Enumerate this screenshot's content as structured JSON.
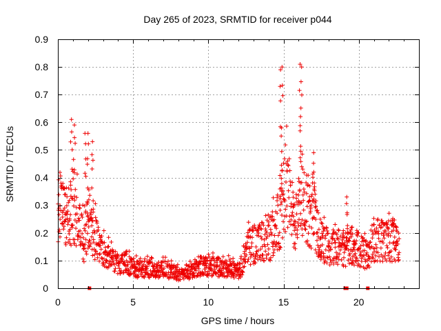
{
  "chart_data": {
    "type": "scatter",
    "title": "Day 265 of 2023, SRMTID for receiver p044",
    "xlabel": "GPS time / hours",
    "ylabel": "SRMTID / TECUs",
    "xlim": [
      0,
      24
    ],
    "ylim": [
      0,
      0.9
    ],
    "x_ticks": [
      0,
      5,
      10,
      15,
      20
    ],
    "y_ticks": [
      0,
      0.1,
      0.2,
      0.3,
      0.4,
      0.5,
      0.6,
      0.7,
      0.8,
      0.9
    ],
    "grid": true,
    "marker": "plus",
    "color": "#ee0000",
    "series": [
      {
        "name": "SRMTID p044",
        "profile_x": [
          0,
          0.25,
          0.5,
          0.75,
          1.0,
          1.25,
          1.5,
          1.75,
          2.0,
          2.25,
          2.5,
          2.75,
          3.0,
          3.25,
          3.5,
          4.0,
          4.5,
          5.0,
          5.5,
          6.0,
          6.5,
          7.0,
          7.5,
          8.0,
          8.5,
          9.0,
          9.5,
          10.0,
          10.5,
          11.0,
          11.5,
          12.0,
          12.25,
          12.5,
          13.0,
          13.5,
          14.0,
          14.5,
          14.75,
          15.0,
          15.25,
          15.5,
          15.75,
          16.0,
          16.25,
          16.5,
          16.75,
          17.0,
          17.25,
          17.5,
          18.0,
          18.5,
          19.0,
          19.5,
          20.0,
          20.5,
          21.0,
          21.5,
          22.0,
          22.5,
          22.7
        ],
        "profile_median": [
          0.3,
          0.28,
          0.27,
          0.26,
          0.3,
          0.25,
          0.2,
          0.17,
          0.25,
          0.22,
          0.18,
          0.15,
          0.14,
          0.12,
          0.1,
          0.09,
          0.09,
          0.07,
          0.07,
          0.07,
          0.065,
          0.07,
          0.06,
          0.05,
          0.05,
          0.07,
          0.08,
          0.08,
          0.08,
          0.07,
          0.07,
          0.06,
          0.08,
          0.14,
          0.16,
          0.17,
          0.17,
          0.22,
          0.25,
          0.32,
          0.36,
          0.3,
          0.22,
          0.28,
          0.32,
          0.3,
          0.25,
          0.28,
          0.2,
          0.17,
          0.15,
          0.15,
          0.14,
          0.15,
          0.14,
          0.12,
          0.16,
          0.17,
          0.17,
          0.18,
          0.15
        ],
        "peaks": [
          {
            "x": 0.9,
            "y": 0.61
          },
          {
            "x": 1.1,
            "y": 0.59
          },
          {
            "x": 1.8,
            "y": 0.56
          },
          {
            "x": 2.0,
            "y": 0.56
          },
          {
            "x": 2.3,
            "y": 0.53
          },
          {
            "x": 14.8,
            "y": 0.79
          },
          {
            "x": 14.9,
            "y": 0.8
          },
          {
            "x": 16.1,
            "y": 0.81
          },
          {
            "x": 16.2,
            "y": 0.8
          },
          {
            "x": 17.0,
            "y": 0.49
          },
          {
            "x": 19.2,
            "y": 0.33
          }
        ],
        "zero_flags_x": [
          2.1,
          19.1,
          19.2,
          20.6
        ]
      }
    ]
  }
}
